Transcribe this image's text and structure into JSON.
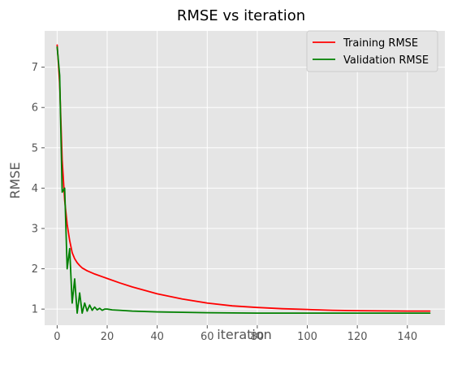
{
  "chart_data": {
    "type": "line",
    "title": "RMSE vs iteration",
    "xlabel": "iteration",
    "ylabel": "RMSE",
    "xlim": [
      -5,
      155
    ],
    "ylim": [
      0.6,
      7.9
    ],
    "xticks": [
      0,
      20,
      40,
      60,
      80,
      100,
      120,
      140
    ],
    "yticks": [
      1,
      2,
      3,
      4,
      5,
      6,
      7
    ],
    "grid": true,
    "legend_position": "top-right",
    "series": [
      {
        "name": "Training RMSE",
        "color": "#ff0000",
        "x": [
          0,
          1,
          2,
          3,
          4,
          5,
          6,
          7,
          8,
          9,
          10,
          12,
          15,
          20,
          25,
          30,
          40,
          50,
          60,
          70,
          80,
          90,
          100,
          110,
          120,
          130,
          140,
          149
        ],
        "values": [
          7.55,
          6.6,
          4.7,
          3.7,
          3.1,
          2.7,
          2.4,
          2.25,
          2.15,
          2.08,
          2.02,
          1.95,
          1.87,
          1.76,
          1.65,
          1.55,
          1.38,
          1.25,
          1.15,
          1.08,
          1.04,
          1.01,
          0.99,
          0.97,
          0.96,
          0.955,
          0.95,
          0.95
        ]
      },
      {
        "name": "Validation RMSE",
        "color": "#008000",
        "x": [
          0,
          1,
          2,
          3,
          4,
          5,
          6,
          7,
          8,
          9,
          10,
          11,
          12,
          13,
          14,
          15,
          16,
          17,
          18,
          19,
          20,
          22,
          25,
          30,
          40,
          50,
          60,
          70,
          80,
          90,
          100,
          110,
          120,
          130,
          140,
          149
        ],
        "values": [
          7.5,
          6.8,
          3.9,
          4.0,
          2.0,
          2.5,
          1.15,
          1.75,
          0.9,
          1.4,
          0.9,
          1.15,
          0.95,
          1.1,
          0.97,
          1.05,
          0.98,
          1.02,
          0.97,
          1.0,
          1.0,
          0.98,
          0.97,
          0.95,
          0.93,
          0.92,
          0.91,
          0.905,
          0.9,
          0.9,
          0.9,
          0.9,
          0.9,
          0.9,
          0.9,
          0.9
        ]
      }
    ]
  }
}
